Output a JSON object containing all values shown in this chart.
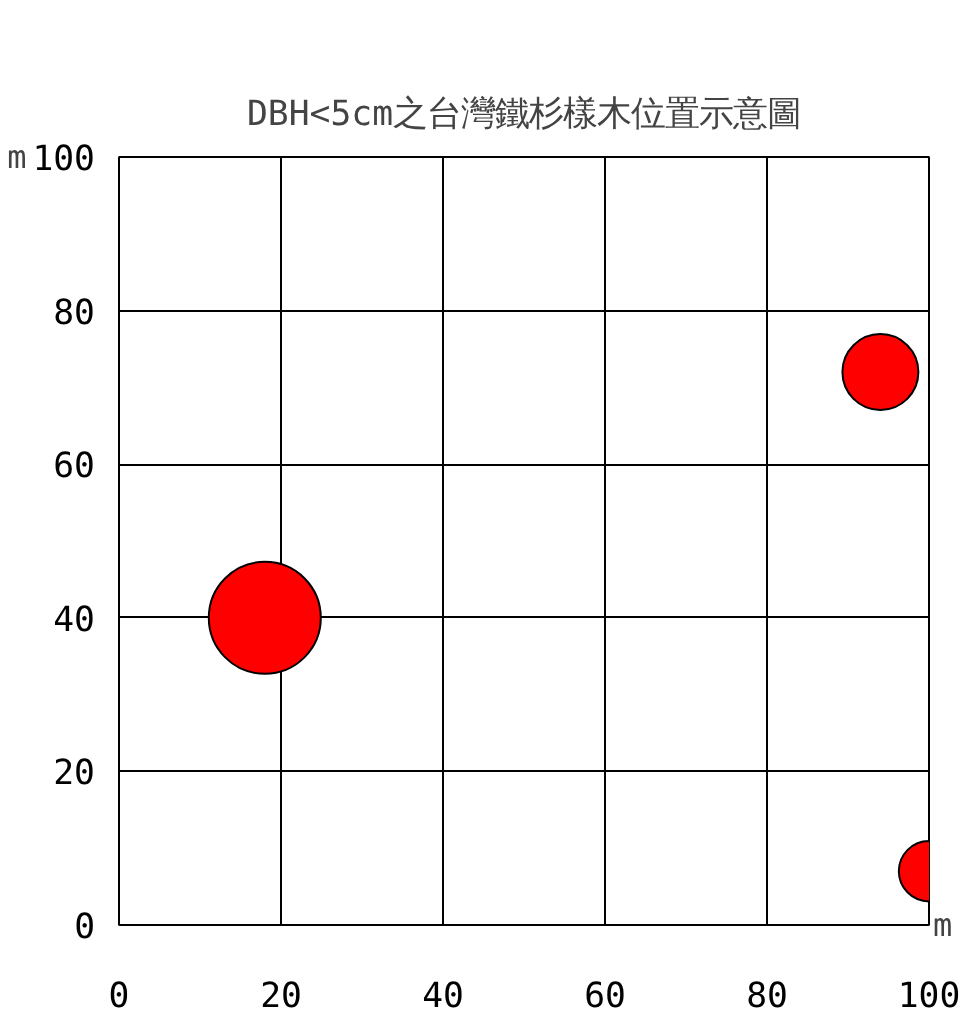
{
  "chart_data": {
    "type": "bubble",
    "title": "DBH<5cm之台灣鐵杉樣木位置示意圖",
    "xlabel": "m",
    "ylabel": "m",
    "x": [
      18,
      94,
      100
    ],
    "values": [
      40,
      72,
      7
    ],
    "sizes": [
      1,
      0.46,
      0.29
    ],
    "color": "#ff0000",
    "xlim": [
      0,
      100
    ],
    "ylim": [
      0,
      100
    ],
    "xticks": [
      0,
      20,
      40,
      60,
      80,
      100
    ],
    "yticks": [
      0,
      20,
      40,
      60,
      80,
      100
    ],
    "grid": true
  }
}
